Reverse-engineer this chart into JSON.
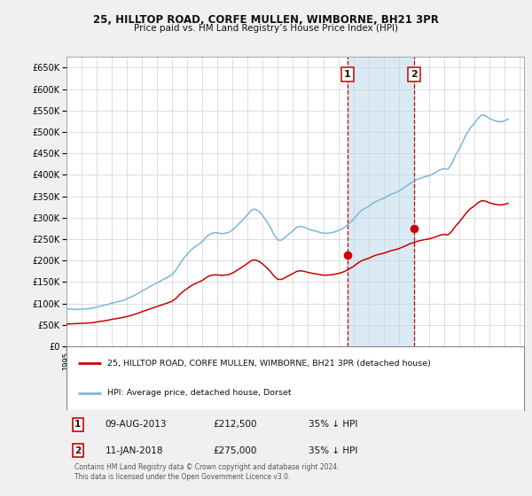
{
  "title": "25, HILLTOP ROAD, CORFE MULLEN, WIMBORNE, BH21 3PR",
  "subtitle": "Price paid vs. HM Land Registry’s House Price Index (HPI)",
  "hpi_color": "#7ab8d9",
  "price_color": "#cc0000",
  "vline_color": "#cc0000",
  "highlight_fill": "#daeaf5",
  "background_color": "#f0f0f0",
  "plot_bg": "#ffffff",
  "ylim": [
    0,
    675000
  ],
  "yticks": [
    0,
    50000,
    100000,
    150000,
    200000,
    250000,
    300000,
    350000,
    400000,
    450000,
    500000,
    550000,
    600000,
    650000
  ],
  "transaction1": {
    "date_num": 2013.6,
    "price": 212500,
    "label": "1"
  },
  "transaction2": {
    "date_num": 2018.04,
    "price": 275000,
    "label": "2"
  },
  "legend_entries": [
    "25, HILLTOP ROAD, CORFE MULLEN, WIMBORNE, BH21 3PR (detached house)",
    "HPI: Average price, detached house, Dorset"
  ],
  "table_rows": [
    [
      "1",
      "09-AUG-2013",
      "£212,500",
      "35% ↓ HPI"
    ],
    [
      "2",
      "11-JAN-2018",
      "£275,000",
      "35% ↓ HPI"
    ]
  ],
  "footnote": "Contains HM Land Registry data © Crown copyright and database right 2024.\nThis data is licensed under the Open Government Licence v3.0.",
  "hpi_data": [
    [
      1995.0,
      88000
    ],
    [
      1995.25,
      87000
    ],
    [
      1995.5,
      86500
    ],
    [
      1995.75,
      86000
    ],
    [
      1996.0,
      87000
    ],
    [
      1996.25,
      87500
    ],
    [
      1996.5,
      88000
    ],
    [
      1996.75,
      89000
    ],
    [
      1997.0,
      92000
    ],
    [
      1997.25,
      94000
    ],
    [
      1997.5,
      96000
    ],
    [
      1997.75,
      98000
    ],
    [
      1998.0,
      101000
    ],
    [
      1998.25,
      103000
    ],
    [
      1998.5,
      105000
    ],
    [
      1998.75,
      107000
    ],
    [
      1999.0,
      111000
    ],
    [
      1999.25,
      115000
    ],
    [
      1999.5,
      119000
    ],
    [
      1999.75,
      124000
    ],
    [
      2000.0,
      129000
    ],
    [
      2000.25,
      134000
    ],
    [
      2000.5,
      139000
    ],
    [
      2000.75,
      144000
    ],
    [
      2001.0,
      148000
    ],
    [
      2001.25,
      153000
    ],
    [
      2001.5,
      158000
    ],
    [
      2001.75,
      162000
    ],
    [
      2002.0,
      168000
    ],
    [
      2002.25,
      178000
    ],
    [
      2002.5,
      192000
    ],
    [
      2002.75,
      205000
    ],
    [
      2003.0,
      215000
    ],
    [
      2003.25,
      225000
    ],
    [
      2003.5,
      232000
    ],
    [
      2003.75,
      238000
    ],
    [
      2004.0,
      245000
    ],
    [
      2004.25,
      255000
    ],
    [
      2004.5,
      262000
    ],
    [
      2004.75,
      265000
    ],
    [
      2005.0,
      265000
    ],
    [
      2005.25,
      263000
    ],
    [
      2005.5,
      264000
    ],
    [
      2005.75,
      266000
    ],
    [
      2006.0,
      272000
    ],
    [
      2006.25,
      280000
    ],
    [
      2006.5,
      289000
    ],
    [
      2006.75,
      298000
    ],
    [
      2007.0,
      308000
    ],
    [
      2007.25,
      318000
    ],
    [
      2007.5,
      320000
    ],
    [
      2007.75,
      315000
    ],
    [
      2008.0,
      305000
    ],
    [
      2008.25,
      292000
    ],
    [
      2008.5,
      278000
    ],
    [
      2008.75,
      260000
    ],
    [
      2009.0,
      248000
    ],
    [
      2009.25,
      248000
    ],
    [
      2009.5,
      255000
    ],
    [
      2009.75,
      263000
    ],
    [
      2010.0,
      270000
    ],
    [
      2010.25,
      278000
    ],
    [
      2010.5,
      280000
    ],
    [
      2010.75,
      278000
    ],
    [
      2011.0,
      274000
    ],
    [
      2011.25,
      271000
    ],
    [
      2011.5,
      269000
    ],
    [
      2011.75,
      266000
    ],
    [
      2012.0,
      264000
    ],
    [
      2012.25,
      264000
    ],
    [
      2012.5,
      265000
    ],
    [
      2012.75,
      267000
    ],
    [
      2013.0,
      270000
    ],
    [
      2013.25,
      274000
    ],
    [
      2013.5,
      280000
    ],
    [
      2013.75,
      288000
    ],
    [
      2014.0,
      296000
    ],
    [
      2014.25,
      307000
    ],
    [
      2014.5,
      316000
    ],
    [
      2014.75,
      322000
    ],
    [
      2015.0,
      326000
    ],
    [
      2015.25,
      333000
    ],
    [
      2015.5,
      338000
    ],
    [
      2015.75,
      342000
    ],
    [
      2016.0,
      345000
    ],
    [
      2016.25,
      350000
    ],
    [
      2016.5,
      355000
    ],
    [
      2016.75,
      358000
    ],
    [
      2017.0,
      362000
    ],
    [
      2017.25,
      368000
    ],
    [
      2017.5,
      374000
    ],
    [
      2017.75,
      380000
    ],
    [
      2018.0,
      385000
    ],
    [
      2018.25,
      390000
    ],
    [
      2018.5,
      393000
    ],
    [
      2018.75,
      396000
    ],
    [
      2019.0,
      398000
    ],
    [
      2019.25,
      402000
    ],
    [
      2019.5,
      407000
    ],
    [
      2019.75,
      412000
    ],
    [
      2020.0,
      415000
    ],
    [
      2020.25,
      413000
    ],
    [
      2020.5,
      425000
    ],
    [
      2020.75,
      445000
    ],
    [
      2021.0,
      460000
    ],
    [
      2021.25,
      478000
    ],
    [
      2021.5,
      496000
    ],
    [
      2021.75,
      510000
    ],
    [
      2022.0,
      520000
    ],
    [
      2022.25,
      532000
    ],
    [
      2022.5,
      540000
    ],
    [
      2022.75,
      538000
    ],
    [
      2023.0,
      532000
    ],
    [
      2023.25,
      528000
    ],
    [
      2023.5,
      525000
    ],
    [
      2023.75,
      524000
    ],
    [
      2024.0,
      526000
    ],
    [
      2024.25,
      530000
    ]
  ],
  "price_line_data": [
    [
      1995.0,
      52000
    ],
    [
      1995.25,
      52500
    ],
    [
      1995.5,
      53000
    ],
    [
      1995.75,
      53200
    ],
    [
      1996.0,
      53800
    ],
    [
      1996.25,
      54200
    ],
    [
      1996.5,
      54700
    ],
    [
      1996.75,
      55300
    ],
    [
      1997.0,
      57000
    ],
    [
      1997.25,
      58200
    ],
    [
      1997.5,
      59500
    ],
    [
      1997.75,
      61000
    ],
    [
      1998.0,
      63000
    ],
    [
      1998.25,
      64500
    ],
    [
      1998.5,
      66000
    ],
    [
      1998.75,
      67500
    ],
    [
      1999.0,
      69500
    ],
    [
      1999.25,
      72000
    ],
    [
      1999.5,
      74500
    ],
    [
      1999.75,
      77500
    ],
    [
      2000.0,
      81000
    ],
    [
      2000.25,
      84000
    ],
    [
      2000.5,
      87000
    ],
    [
      2000.75,
      90000
    ],
    [
      2001.0,
      93000
    ],
    [
      2001.25,
      96000
    ],
    [
      2001.5,
      99000
    ],
    [
      2001.75,
      102000
    ],
    [
      2002.0,
      105500
    ],
    [
      2002.25,
      112000
    ],
    [
      2002.5,
      121000
    ],
    [
      2002.75,
      129000
    ],
    [
      2003.0,
      135000
    ],
    [
      2003.25,
      141500
    ],
    [
      2003.5,
      146000
    ],
    [
      2003.75,
      150000
    ],
    [
      2004.0,
      154000
    ],
    [
      2004.25,
      160500
    ],
    [
      2004.5,
      165000
    ],
    [
      2004.75,
      166800
    ],
    [
      2005.0,
      166800
    ],
    [
      2005.25,
      165700
    ],
    [
      2005.5,
      166200
    ],
    [
      2005.75,
      167500
    ],
    [
      2006.0,
      171300
    ],
    [
      2006.25,
      176300
    ],
    [
      2006.5,
      182000
    ],
    [
      2006.75,
      187700
    ],
    [
      2007.0,
      193900
    ],
    [
      2007.25,
      200300
    ],
    [
      2007.5,
      201600
    ],
    [
      2007.75,
      198300
    ],
    [
      2008.0,
      192000
    ],
    [
      2008.25,
      183800
    ],
    [
      2008.5,
      175000
    ],
    [
      2008.75,
      163700
    ],
    [
      2009.0,
      156200
    ],
    [
      2009.25,
      156200
    ],
    [
      2009.5,
      160600
    ],
    [
      2009.75,
      165600
    ],
    [
      2010.0,
      170000
    ],
    [
      2010.25,
      175000
    ],
    [
      2010.5,
      176300
    ],
    [
      2010.75,
      175000
    ],
    [
      2011.0,
      172500
    ],
    [
      2011.25,
      170600
    ],
    [
      2011.5,
      169300
    ],
    [
      2011.75,
      167500
    ],
    [
      2012.0,
      166200
    ],
    [
      2012.25,
      166200
    ],
    [
      2012.5,
      166900
    ],
    [
      2012.75,
      168100
    ],
    [
      2013.0,
      170000
    ],
    [
      2013.25,
      172500
    ],
    [
      2013.5,
      176300
    ],
    [
      2013.75,
      181300
    ],
    [
      2014.0,
      186300
    ],
    [
      2014.25,
      193200
    ],
    [
      2014.5,
      199000
    ],
    [
      2014.75,
      202700
    ],
    [
      2015.0,
      205200
    ],
    [
      2015.25,
      209500
    ],
    [
      2015.5,
      212800
    ],
    [
      2015.75,
      215300
    ],
    [
      2016.0,
      217100
    ],
    [
      2016.25,
      220300
    ],
    [
      2016.5,
      223400
    ],
    [
      2016.75,
      225300
    ],
    [
      2017.0,
      227800
    ],
    [
      2017.25,
      231600
    ],
    [
      2017.5,
      235400
    ],
    [
      2017.75,
      239300
    ],
    [
      2018.0,
      242300
    ],
    [
      2018.25,
      245500
    ],
    [
      2018.5,
      247400
    ],
    [
      2018.75,
      249300
    ],
    [
      2019.0,
      250600
    ],
    [
      2019.25,
      253100
    ],
    [
      2019.5,
      256300
    ],
    [
      2019.75,
      259400
    ],
    [
      2020.0,
      261300
    ],
    [
      2020.25,
      260000
    ],
    [
      2020.5,
      267500
    ],
    [
      2020.75,
      280000
    ],
    [
      2021.0,
      289600
    ],
    [
      2021.25,
      301000
    ],
    [
      2021.5,
      312200
    ],
    [
      2021.75,
      321300
    ],
    [
      2022.0,
      327500
    ],
    [
      2022.25,
      335000
    ],
    [
      2022.5,
      340000
    ],
    [
      2022.75,
      338800
    ],
    [
      2023.0,
      335000
    ],
    [
      2023.25,
      332500
    ],
    [
      2023.5,
      330600
    ],
    [
      2023.75,
      330000
    ],
    [
      2024.0,
      331300
    ],
    [
      2024.25,
      333800
    ]
  ]
}
